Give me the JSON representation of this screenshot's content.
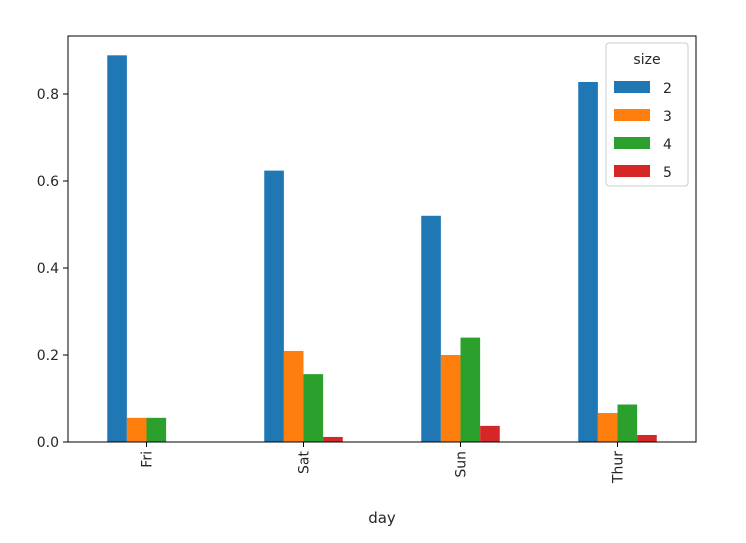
{
  "chart_data": {
    "type": "bar",
    "title": "",
    "xlabel": "day",
    "ylabel": "",
    "categories": [
      "Fri",
      "Sat",
      "Sun",
      "Thur"
    ],
    "series": [
      {
        "name": "2",
        "color": "#1f77b4",
        "values": [
          0.888889,
          0.623853,
          0.52,
          0.827586
        ]
      },
      {
        "name": "3",
        "color": "#ff7f0e",
        "values": [
          0.055556,
          0.209302,
          0.2,
          0.066667
        ]
      },
      {
        "name": "4",
        "color": "#2ca02c",
        "values": [
          0.055556,
          0.155963,
          0.24,
          0.086207
        ]
      },
      {
        "name": "5",
        "color": "#d62728",
        "values": [
          0.0,
          0.011628,
          0.037037,
          0.016129
        ]
      }
    ],
    "ylim": [
      0,
      0.9333
    ],
    "yticks": [
      0.0,
      0.2,
      0.4,
      0.6,
      0.8
    ],
    "ytick_labels": [
      "0.0",
      "0.2",
      "0.4",
      "0.6",
      "0.8"
    ],
    "xtick_rotation": "vertical",
    "grid": false,
    "legend": {
      "title": "size",
      "placement": "top-right",
      "entries": [
        "2",
        "3",
        "4",
        "5"
      ]
    }
  }
}
